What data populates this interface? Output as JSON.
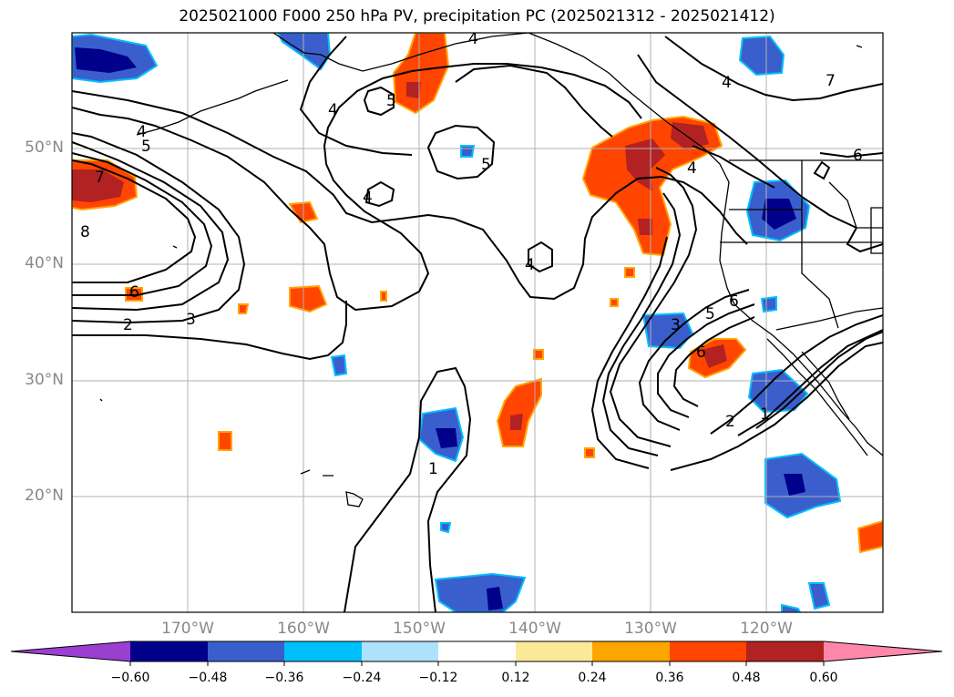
{
  "title": "2025021000 F000 250 hPa PV, precipitation PC (2025021312 - 2025021412)",
  "lat_labels": [
    "50°N",
    "40°N",
    "30°N",
    "20°N"
  ],
  "lon_labels": [
    "170°W",
    "160°W",
    "150°W",
    "140°W",
    "130°W",
    "120°W"
  ],
  "colorbar": {
    "ticks": [
      "−0.60",
      "−0.48",
      "−0.36",
      "−0.24",
      "−0.12",
      "0.12",
      "0.24",
      "0.36",
      "0.48",
      "0.60"
    ],
    "colors": [
      "#9a3fd0",
      "#00008b",
      "#3a5fcd",
      "#00bfff",
      "#aee1fa",
      "#ffffff",
      "#fbe99a",
      "#ffa500",
      "#ff4500",
      "#b22222",
      "#ff88aa"
    ]
  },
  "contour_labels": [
    "4",
    "5",
    "4",
    "4",
    "5",
    "4",
    "5",
    "7",
    "8",
    "6",
    "2",
    "3",
    "4",
    "4",
    "4",
    "3",
    "5",
    "6",
    "6",
    "2",
    "1",
    "1",
    "7",
    "6"
  ],
  "colors": {
    "land_edge": "#000000",
    "grid": "#b0b0b0",
    "contour": "#000000"
  }
}
